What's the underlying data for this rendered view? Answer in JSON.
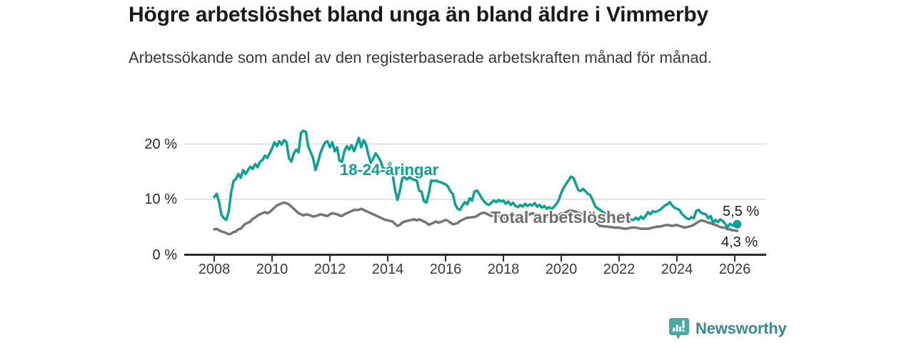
{
  "header": {
    "title": "Högre arbetslöshet bland unga än bland äldre i Vimmerby",
    "subtitle": "Arbetssökande som andel av den registerbaserade arbetskraften månad för månad."
  },
  "chart_data": {
    "type": "line",
    "unit": "%",
    "grid": "horizontal",
    "legend": "inline-labels",
    "start": {
      "year": 2008,
      "month": 1
    },
    "frequency": "monthly",
    "xlim": [
      2007,
      2027
    ],
    "ylim": [
      0,
      24
    ],
    "x_ticks": [
      {
        "label": "2008",
        "year": 2008
      },
      {
        "label": "2010",
        "year": 2010
      },
      {
        "label": "2012",
        "year": 2012
      },
      {
        "label": "2014",
        "year": 2014
      },
      {
        "label": "2016",
        "year": 2016
      },
      {
        "label": "2018",
        "year": 2018
      },
      {
        "label": "2020",
        "year": 2020
      },
      {
        "label": "2022",
        "year": 2022
      },
      {
        "label": "2024",
        "year": 2024
      },
      {
        "label": "2026",
        "year": 2026
      }
    ],
    "y_ticks": [
      {
        "label": "0 %",
        "value": 0
      },
      {
        "label": "10 %",
        "value": 10
      },
      {
        "label": "20 %",
        "value": 20
      }
    ],
    "series": [
      {
        "id": "youth",
        "name": "18-24-åringar",
        "color": "#0da195",
        "end_label": "5,5 %",
        "end_value": 5.5,
        "end_dot": true,
        "values": [
          10.4,
          11.0,
          9.5,
          7.2,
          6.6,
          6.3,
          7.8,
          11.2,
          13.3,
          13.7,
          14.6,
          13.9,
          15.3,
          14.6,
          15.3,
          15.9,
          15.5,
          16.4,
          15.8,
          16.8,
          17.1,
          17.9,
          17.5,
          18.3,
          19.2,
          20.3,
          19.6,
          20.5,
          19.9,
          20.7,
          20.3,
          17.5,
          16.8,
          18.3,
          19.0,
          18.5,
          22.0,
          22.4,
          22.2,
          19.6,
          18.5,
          17.5,
          15.3,
          16.6,
          18.3,
          19.4,
          20.3,
          20.5,
          19.4,
          20.3,
          18.7,
          19.4,
          17.0,
          16.8,
          18.7,
          19.6,
          19.0,
          19.8,
          18.7,
          19.8,
          21.1,
          19.4,
          20.7,
          19.9,
          18.0,
          16.6,
          17.4,
          18.3,
          17.7,
          16.9,
          15.7,
          15.5,
          14.4,
          16.0,
          14.5,
          11.8,
          9.9,
          11.5,
          13.8,
          14.0,
          13.6,
          14.0,
          13.7,
          13.5,
          13.5,
          11.6,
          11.4,
          9.7,
          9.4,
          11.0,
          13.4,
          13.3,
          13.4,
          13.2,
          13.1,
          12.9,
          12.7,
          12.3,
          11.4,
          11.0,
          9.1,
          8.3,
          8.1,
          8.9,
          9.5,
          9.1,
          10.2,
          9.8,
          11.4,
          11.6,
          11.0,
          10.2,
          9.6,
          9.2,
          9.0,
          9.4,
          9.8,
          9.5,
          9.9,
          9.6,
          9.8,
          9.2,
          9.6,
          9.0,
          9.4,
          8.8,
          8.6,
          9.0,
          8.7,
          9.2,
          8.8,
          9.1,
          8.9,
          9.3,
          8.7,
          9.0,
          8.5,
          8.8,
          8.3,
          8.6,
          8.2,
          8.7,
          9.2,
          9.9,
          11.2,
          12.1,
          12.8,
          13.4,
          14.1,
          13.9,
          12.8,
          11.7,
          11.5,
          11.9,
          11.5,
          11.0,
          10.8,
          9.9,
          8.8,
          8.4,
          8.1,
          7.8,
          7.5,
          7.3,
          7.1,
          7.0,
          6.9,
          6.8,
          6.7,
          6.6,
          6.5,
          6.4,
          6.4,
          6.3,
          6.3,
          6.7,
          6.3,
          6.9,
          6.5,
          7.0,
          7.7,
          7.3,
          7.9,
          7.7,
          7.9,
          8.1,
          8.5,
          8.9,
          9.1,
          9.5,
          8.9,
          8.5,
          8.3,
          8.1,
          7.4,
          7.0,
          6.6,
          6.4,
          6.8,
          6.6,
          7.9,
          8.1,
          7.6,
          7.4,
          7.3,
          6.6,
          7.0,
          5.8,
          6.3,
          5.9,
          6.4,
          6.1,
          5.6,
          5.0,
          5.6,
          5.3,
          5.4,
          5.5
        ]
      },
      {
        "id": "total",
        "name": "Total arbetslöshet",
        "color": "#757575",
        "end_label": "4,3 %",
        "end_value": 4.3,
        "end_dot": false,
        "values": [
          4.6,
          4.7,
          4.4,
          4.2,
          4.1,
          3.9,
          3.7,
          3.8,
          4.1,
          4.2,
          4.6,
          4.7,
          5.2,
          5.6,
          5.8,
          6.0,
          6.5,
          6.7,
          7.1,
          7.3,
          7.5,
          7.7,
          7.5,
          7.7,
          8.1,
          8.5,
          8.9,
          9.1,
          9.3,
          9.4,
          9.3,
          9.1,
          8.7,
          8.3,
          7.9,
          7.5,
          7.3,
          7.1,
          7.3,
          7.2,
          7.1,
          6.9,
          7.0,
          7.1,
          7.3,
          7.2,
          7.1,
          7.0,
          7.3,
          7.5,
          7.4,
          7.3,
          7.1,
          7.0,
          7.3,
          7.5,
          7.7,
          7.9,
          8.1,
          8.1,
          8.1,
          8.3,
          8.1,
          7.9,
          7.7,
          7.5,
          7.3,
          7.1,
          6.9,
          6.7,
          6.5,
          6.3,
          6.2,
          6.1,
          6.0,
          5.6,
          5.2,
          5.4,
          5.8,
          6.0,
          6.1,
          6.2,
          6.3,
          6.4,
          6.2,
          6.4,
          6.2,
          6.0,
          5.8,
          5.4,
          5.6,
          5.8,
          6.0,
          5.8,
          5.9,
          6.1,
          6.3,
          6.1,
          5.8,
          5.5,
          5.6,
          5.7,
          6.1,
          6.3,
          6.5,
          6.7,
          6.7,
          6.8,
          6.8,
          7.0,
          7.3,
          7.5,
          7.6,
          7.4,
          7.2,
          7.0,
          7.1,
          7.0,
          6.9,
          6.8,
          6.7,
          6.5,
          6.3,
          6.1,
          5.9,
          6.0,
          6.1,
          6.3,
          6.5,
          6.9,
          7.1,
          7.3,
          7.5,
          7.3,
          7.2,
          7.1,
          7.1,
          7.0,
          6.9,
          6.9,
          7.0,
          7.1,
          7.1,
          7.2,
          7.4,
          7.5,
          7.7,
          7.9,
          8.0,
          7.9,
          7.8,
          7.6,
          7.4,
          7.2,
          7.0,
          6.8,
          6.5,
          6.2,
          5.9,
          5.6,
          5.2,
          5.2,
          5.1,
          5.1,
          5.0,
          5.0,
          4.9,
          4.9,
          4.9,
          4.8,
          4.7,
          4.7,
          4.8,
          4.9,
          4.9,
          4.9,
          4.8,
          4.7,
          4.7,
          4.7,
          4.7,
          4.8,
          4.9,
          5.0,
          5.1,
          5.1,
          5.2,
          5.3,
          5.4,
          5.3,
          5.2,
          5.3,
          5.4,
          5.2,
          5.1,
          4.9,
          5.0,
          5.1,
          5.2,
          5.4,
          5.7,
          6.0,
          6.2,
          6.1,
          6.0,
          5.8,
          5.7,
          5.5,
          5.4,
          5.2,
          5.0,
          4.9,
          4.9,
          4.6,
          4.6,
          4.4,
          4.4,
          4.3
        ]
      }
    ],
    "colors": {
      "axis": "#2d2d2d",
      "gridline": "#dcdcdc"
    }
  },
  "footer": {
    "brand": "Newsworthy"
  }
}
